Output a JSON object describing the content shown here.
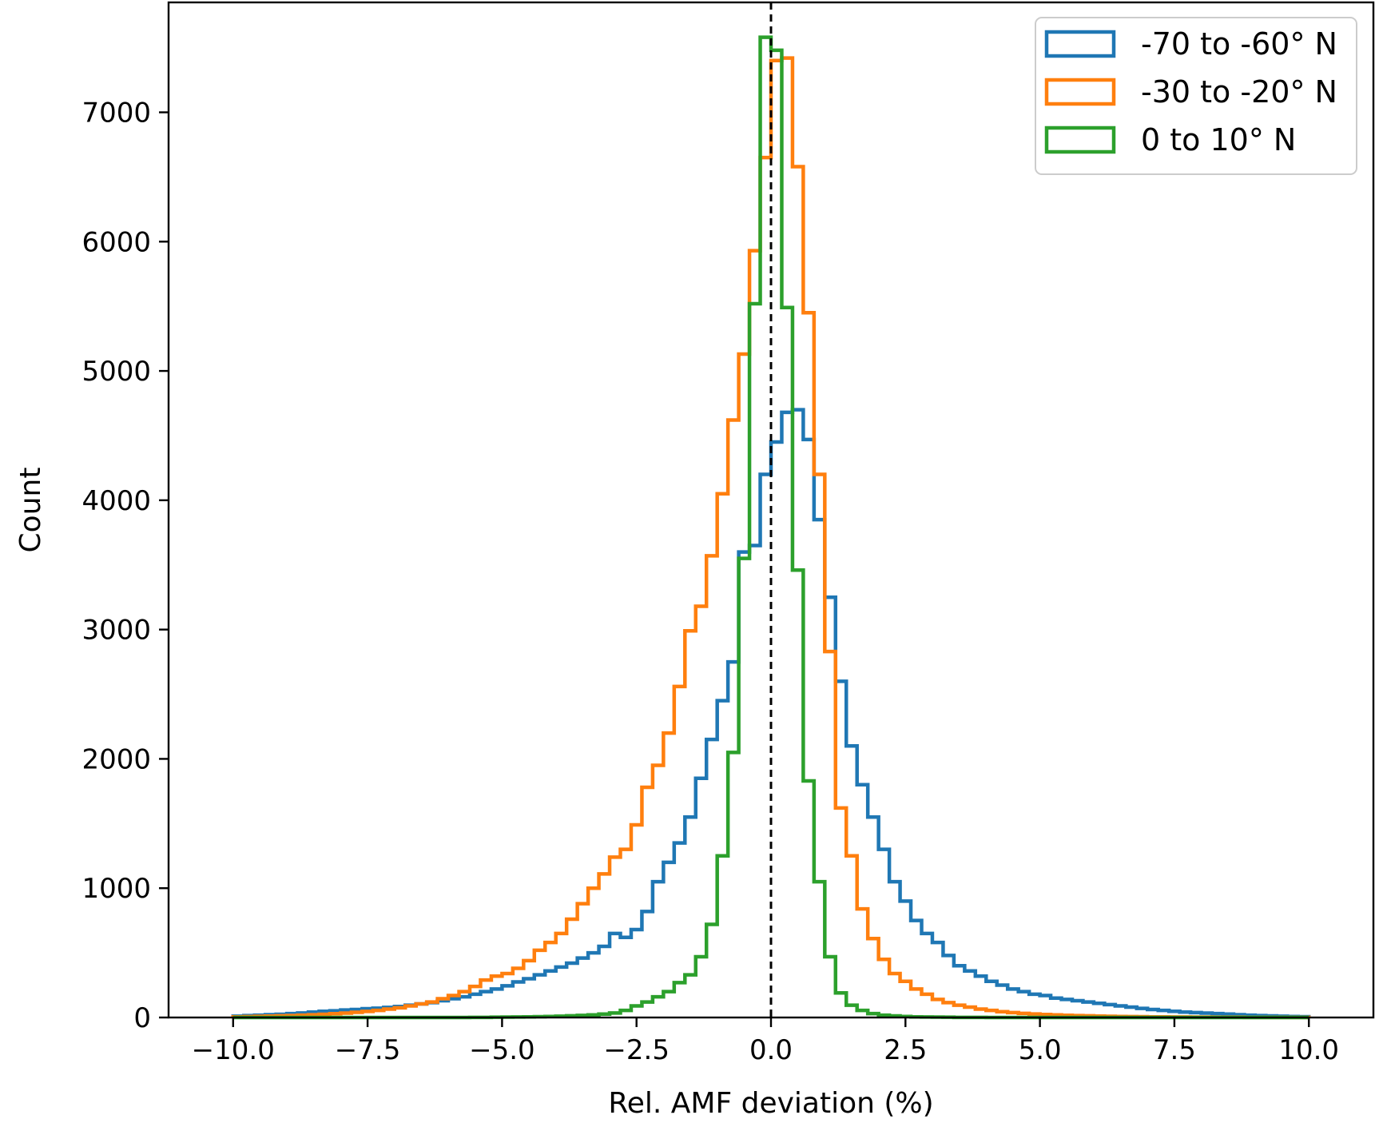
{
  "chart_data": {
    "type": "histogram",
    "title": "",
    "xlabel": "Rel. AMF deviation (%)",
    "ylabel": "Count",
    "xlim": [
      -11.2,
      11.2
    ],
    "ylim": [
      0,
      7850
    ],
    "xticks": [
      -10.0,
      -7.5,
      -5.0,
      -2.5,
      0.0,
      2.5,
      5.0,
      7.5,
      10.0
    ],
    "xtick_labels": [
      "−10.0",
      "−7.5",
      "−5.0",
      "−2.5",
      "0.0",
      "2.5",
      "5.0",
      "7.5",
      "10.0"
    ],
    "yticks": [
      0,
      1000,
      2000,
      3000,
      4000,
      5000,
      6000,
      7000
    ],
    "ytick_labels": [
      "0",
      "1000",
      "2000",
      "3000",
      "4000",
      "5000",
      "6000",
      "7000"
    ],
    "grid": false,
    "legend_position": "top-right",
    "vline": {
      "x": 0.0,
      "style": "dashed",
      "color": "#000000"
    },
    "bin_edges": [
      -10.0,
      -9.8,
      -9.6,
      -9.4,
      -9.2,
      -9.0,
      -8.8,
      -8.6,
      -8.4,
      -8.2,
      -8.0,
      -7.8,
      -7.6,
      -7.4,
      -7.2,
      -7.0,
      -6.8,
      -6.6,
      -6.4,
      -6.2,
      -6.0,
      -5.8,
      -5.6,
      -5.4,
      -5.2,
      -5.0,
      -4.8,
      -4.6,
      -4.4,
      -4.2,
      -4.0,
      -3.8,
      -3.6,
      -3.4,
      -3.2,
      -3.0,
      -2.8,
      -2.6,
      -2.4,
      -2.2,
      -2.0,
      -1.8,
      -1.6,
      -1.4,
      -1.2,
      -1.0,
      -0.8,
      -0.6,
      -0.4,
      -0.2,
      0.0,
      0.2,
      0.4,
      0.6,
      0.8,
      1.0,
      1.2,
      1.4,
      1.6,
      1.8,
      2.0,
      2.2,
      2.4,
      2.6,
      2.8,
      3.0,
      3.2,
      3.4,
      3.6,
      3.8,
      4.0,
      4.2,
      4.4,
      4.6,
      4.8,
      5.0,
      5.2,
      5.4,
      5.6,
      5.8,
      6.0,
      6.2,
      6.4,
      6.6,
      6.8,
      7.0,
      7.2,
      7.4,
      7.6,
      7.8,
      8.0,
      8.2,
      8.4,
      8.6,
      8.8,
      9.0,
      9.2,
      9.4,
      9.6,
      9.8,
      10.0
    ],
    "series": [
      {
        "name": "-70 to -60° N",
        "color": "#1f77b4",
        "counts": [
          10,
          15,
          18,
          22,
          25,
          30,
          35,
          42,
          48,
          52,
          58,
          62,
          68,
          72,
          78,
          85,
          95,
          105,
          115,
          130,
          145,
          160,
          180,
          200,
          220,
          245,
          275,
          300,
          330,
          360,
          390,
          420,
          460,
          500,
          550,
          650,
          620,
          680,
          820,
          1050,
          1200,
          1350,
          1550,
          1850,
          2150,
          2450,
          2750,
          3600,
          3650,
          4200,
          4450,
          4680,
          4700,
          4470,
          3850,
          3250,
          2600,
          2100,
          1800,
          1550,
          1300,
          1050,
          900,
          750,
          650,
          580,
          480,
          400,
          360,
          320,
          280,
          250,
          220,
          200,
          180,
          170,
          150,
          140,
          130,
          120,
          110,
          100,
          90,
          80,
          70,
          62,
          55,
          48,
          42,
          38,
          34,
          30,
          26,
          22,
          18,
          15,
          12,
          10,
          8,
          6
        ]
      },
      {
        "name": "-30 to -20° N",
        "color": "#ff7f0e",
        "counts": [
          5,
          7,
          9,
          11,
          13,
          15,
          18,
          21,
          25,
          29,
          34,
          40,
          47,
          55,
          65,
          75,
          90,
          105,
          120,
          145,
          170,
          200,
          240,
          290,
          320,
          340,
          380,
          440,
          520,
          580,
          650,
          760,
          880,
          1000,
          1110,
          1240,
          1300,
          1490,
          1780,
          1950,
          2200,
          2560,
          2990,
          3180,
          3570,
          4050,
          4620,
          5130,
          5930,
          6650,
          7400,
          7420,
          6580,
          5450,
          4200,
          2830,
          1620,
          1250,
          840,
          610,
          450,
          340,
          280,
          220,
          180,
          140,
          115,
          95,
          80,
          65,
          55,
          45,
          38,
          32,
          27,
          23,
          20,
          17,
          15,
          13,
          11,
          9,
          8,
          7,
          6,
          5,
          5,
          4,
          4,
          3,
          3,
          2,
          2,
          2,
          1,
          1,
          1,
          1,
          1,
          1
        ]
      },
      {
        "name": "0 to 10° N",
        "color": "#2ca02c",
        "counts": [
          0,
          0,
          0,
          0,
          0,
          0,
          0,
          0,
          0,
          0,
          0,
          0,
          0,
          0,
          0,
          0,
          0,
          0,
          0,
          0,
          0,
          0,
          1,
          1,
          2,
          3,
          4,
          5,
          6,
          8,
          10,
          13,
          16,
          20,
          26,
          35,
          55,
          90,
          120,
          160,
          200,
          270,
          330,
          470,
          720,
          1250,
          2050,
          3550,
          5520,
          7580,
          7480,
          5490,
          3460,
          1830,
          1050,
          470,
          190,
          95,
          55,
          30,
          18,
          12,
          8,
          5,
          4,
          3,
          2,
          1,
          1,
          1,
          0,
          0,
          0,
          0,
          0,
          0,
          0,
          0,
          0,
          0,
          0,
          0,
          0,
          0,
          0,
          0,
          0,
          0,
          0,
          0,
          0,
          0,
          0,
          0,
          0,
          0,
          0,
          0,
          0,
          0
        ]
      }
    ]
  }
}
